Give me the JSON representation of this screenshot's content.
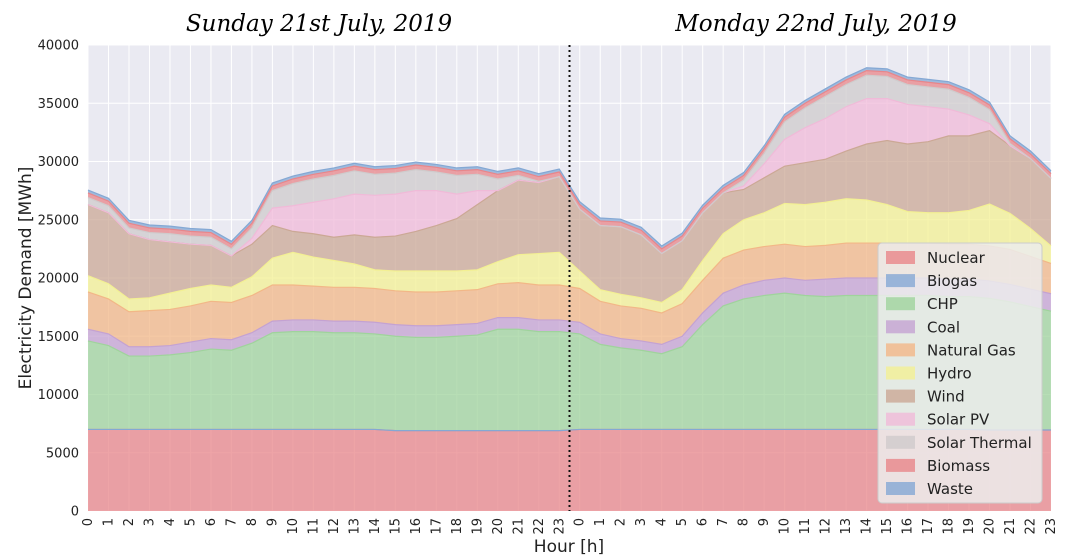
{
  "chart_data": {
    "type": "area",
    "stacked": true,
    "titles": [
      "Sunday 21st July, 2019",
      "Monday 22nd July, 2019"
    ],
    "xlabel": "Hour [h]",
    "ylabel": "Electricity Demand [MWh]",
    "ylim": [
      0,
      40000
    ],
    "yticks": [
      0,
      5000,
      10000,
      15000,
      20000,
      25000,
      30000,
      35000,
      40000
    ],
    "x_tick_labels": [
      "0",
      "1",
      "2",
      "3",
      "4",
      "5",
      "6",
      "7",
      "8",
      "9",
      "10",
      "11",
      "12",
      "13",
      "14",
      "15",
      "16",
      "17",
      "18",
      "19",
      "20",
      "21",
      "22",
      "23",
      "0",
      "1",
      "2",
      "3",
      "4",
      "5",
      "6",
      "7",
      "8",
      "9",
      "10",
      "11",
      "12",
      "13",
      "14",
      "15",
      "16",
      "17",
      "18",
      "19",
      "20",
      "21",
      "22",
      "23"
    ],
    "divider_after_index": 23.5,
    "grid": true,
    "legend_position": "lower-right",
    "series": [
      {
        "name": "Nuclear",
        "color": "#e8868a",
        "values": [
          7000,
          7000,
          7000,
          7000,
          7000,
          7000,
          7000,
          7000,
          7000,
          7000,
          7000,
          7000,
          7000,
          7000,
          7000,
          6900,
          6900,
          6900,
          6900,
          6900,
          6900,
          6900,
          6900,
          6900,
          7000,
          7000,
          7000,
          7000,
          7000,
          7000,
          7000,
          7000,
          7000,
          7000,
          7000,
          7000,
          7000,
          7000,
          7000,
          7000,
          7000,
          7000,
          7000,
          7000,
          6950,
          6950,
          6950,
          6950
        ]
      },
      {
        "name": "Biogas",
        "color": "#84a8d4",
        "values": [
          0,
          0,
          0,
          0,
          0,
          0,
          0,
          0,
          0,
          0,
          0,
          0,
          0,
          0,
          0,
          0,
          0,
          0,
          0,
          0,
          0,
          0,
          0,
          0,
          0,
          0,
          0,
          0,
          0,
          0,
          0,
          0,
          0,
          0,
          0,
          0,
          0,
          0,
          0,
          0,
          0,
          0,
          0,
          0,
          0,
          0,
          0,
          0
        ]
      },
      {
        "name": "CHP",
        "color": "#9fd39c",
        "values": [
          7600,
          7200,
          6300,
          6300,
          6400,
          6600,
          6900,
          6800,
          7400,
          8300,
          8400,
          8400,
          8300,
          8300,
          8200,
          8100,
          8000,
          8000,
          8100,
          8200,
          8700,
          8700,
          8500,
          8500,
          8200,
          7300,
          7000,
          6800,
          6500,
          7100,
          9000,
          10600,
          11200,
          11500,
          11700,
          11500,
          11400,
          11500,
          11500,
          11500,
          11500,
          11500,
          11400,
          11400,
          11300,
          11000,
          10600,
          10200
        ]
      },
      {
        "name": "Coal",
        "color": "#c4a2d2",
        "values": [
          1000,
          1000,
          800,
          800,
          800,
          900,
          900,
          900,
          900,
          1000,
          1000,
          1000,
          1000,
          1000,
          1000,
          1000,
          1000,
          1000,
          1000,
          1000,
          1000,
          1000,
          1000,
          1000,
          1000,
          900,
          800,
          800,
          800,
          900,
          1000,
          1100,
          1200,
          1300,
          1300,
          1300,
          1500,
          1500,
          1500,
          1500,
          1500,
          1500,
          1500,
          1500,
          1500,
          1500,
          1500,
          1500
        ]
      },
      {
        "name": "Natural Gas",
        "color": "#f2b787",
        "values": [
          3200,
          3000,
          3000,
          3100,
          3100,
          3100,
          3200,
          3200,
          3200,
          3100,
          3000,
          2900,
          2900,
          2900,
          2900,
          2900,
          2900,
          2900,
          2900,
          2900,
          2900,
          3000,
          3000,
          3000,
          2900,
          2800,
          2800,
          2800,
          2700,
          2800,
          2800,
          3000,
          3000,
          2900,
          2900,
          2900,
          2900,
          3000,
          3000,
          3000,
          3000,
          3000,
          3000,
          3000,
          3000,
          3000,
          2800,
          2600
        ]
      },
      {
        "name": "Hydro",
        "color": "#f3f093",
        "values": [
          1400,
          1300,
          1100,
          1100,
          1400,
          1500,
          1400,
          1300,
          1600,
          2300,
          2800,
          2500,
          2300,
          2000,
          1600,
          1700,
          1800,
          1800,
          1700,
          1700,
          1900,
          2400,
          2700,
          2800,
          1500,
          1000,
          1000,
          900,
          900,
          1200,
          1700,
          2100,
          2600,
          2900,
          3500,
          3600,
          3700,
          3800,
          3700,
          3300,
          2700,
          2600,
          2700,
          2900,
          3600,
          3100,
          2400,
          1500
        ]
      },
      {
        "name": "Wind",
        "color": "#cba895",
        "values": [
          6100,
          6100,
          5600,
          5000,
          4400,
          3800,
          3400,
          2700,
          2800,
          2800,
          1800,
          2000,
          2000,
          2500,
          2800,
          3000,
          3400,
          3900,
          4500,
          5600,
          6100,
          6400,
          6100,
          6500,
          5300,
          5500,
          5800,
          5400,
          4200,
          4200,
          4100,
          3500,
          2600,
          3000,
          3200,
          3600,
          3700,
          4100,
          4800,
          5500,
          5800,
          6100,
          6600,
          6400,
          6300,
          5800,
          6000,
          5800
        ]
      },
      {
        "name": "Solar PV",
        "color": "#f0bad8",
        "values": [
          0,
          0,
          0,
          0,
          0,
          0,
          0,
          0,
          500,
          1500,
          2200,
          2700,
          3300,
          3500,
          3600,
          3600,
          3500,
          3000,
          2100,
          1200,
          0,
          0,
          0,
          0,
          0,
          0,
          0,
          0,
          0,
          0,
          0,
          0,
          300,
          1200,
          2300,
          3000,
          3500,
          3800,
          3900,
          3600,
          3400,
          3000,
          2300,
          1800,
          600,
          0,
          0,
          0
        ]
      },
      {
        "name": "Solar Thermal",
        "color": "#cfcbcc",
        "values": [
          600,
          600,
          500,
          600,
          700,
          700,
          700,
          600,
          900,
          1500,
          1900,
          2000,
          2000,
          2000,
          1800,
          1800,
          1800,
          1600,
          1600,
          1400,
          1000,
          400,
          100,
          0,
          0,
          0,
          0,
          0,
          0,
          0,
          0,
          0,
          500,
          900,
          1500,
          1700,
          1900,
          1900,
          2000,
          1900,
          1700,
          1700,
          1700,
          1500,
          1200,
          200,
          0,
          0
        ]
      },
      {
        "name": "Biomass",
        "color": "#e8868a",
        "values": [
          400,
          400,
          400,
          400,
          400,
          400,
          400,
          400,
          400,
          400,
          400,
          400,
          400,
          400,
          400,
          400,
          400,
          400,
          400,
          400,
          400,
          400,
          400,
          400,
          400,
          400,
          400,
          400,
          400,
          400,
          400,
          400,
          400,
          400,
          400,
          400,
          400,
          400,
          400,
          400,
          400,
          400,
          400,
          400,
          400,
          400,
          400,
          400
        ]
      },
      {
        "name": "Waste",
        "color": "#84a8d4",
        "values": [
          250,
          250,
          250,
          250,
          250,
          250,
          250,
          250,
          250,
          250,
          250,
          250,
          250,
          250,
          250,
          250,
          250,
          250,
          250,
          250,
          250,
          250,
          250,
          250,
          250,
          250,
          250,
          250,
          250,
          250,
          250,
          250,
          250,
          250,
          250,
          250,
          250,
          250,
          250,
          250,
          250,
          250,
          250,
          250,
          250,
          250,
          250,
          250
        ]
      }
    ]
  }
}
